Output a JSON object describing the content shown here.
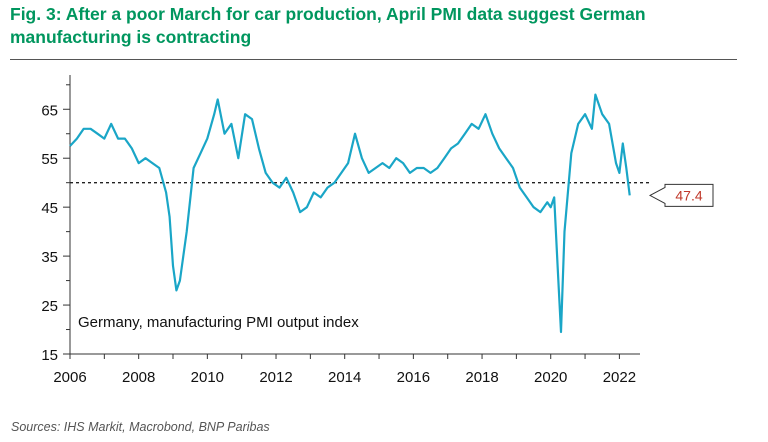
{
  "title": "Fig. 3: After a poor March for car production, April PMI data suggest German manufacturing is contracting",
  "source": "Sources: IHS Markit, Macrobond, BNP Paribas",
  "colors": {
    "title": "#00965e",
    "series": "#1aa6c7",
    "callout": "#c0392b",
    "axis": "#333333"
  },
  "chart_data": {
    "type": "line",
    "title": "Fig. 3: After a poor March for car production, April PMI data suggest German manufacturing is contracting",
    "xlabel": "",
    "ylabel": "",
    "xlim": [
      2006,
      2022.6
    ],
    "ylim": [
      15,
      72
    ],
    "x_ticks": [
      2006,
      2008,
      2010,
      2012,
      2014,
      2016,
      2018,
      2020,
      2022
    ],
    "y_ticks": [
      15,
      25,
      35,
      45,
      55,
      65
    ],
    "reference_line": {
      "value": 50,
      "style": "dashed"
    },
    "annotation_text": "Germany, manufacturing PMI output index",
    "callout": {
      "label": "47.4",
      "value": 47.4
    },
    "series": [
      {
        "name": "Germany, manufacturing PMI output index",
        "x": [
          2006.0,
          2006.2,
          2006.4,
          2006.6,
          2006.8,
          2007.0,
          2007.2,
          2007.4,
          2007.6,
          2007.8,
          2008.0,
          2008.2,
          2008.4,
          2008.6,
          2008.8,
          2008.9,
          2009.0,
          2009.1,
          2009.2,
          2009.4,
          2009.6,
          2009.8,
          2010.0,
          2010.2,
          2010.3,
          2010.5,
          2010.7,
          2010.9,
          2011.1,
          2011.3,
          2011.5,
          2011.7,
          2011.9,
          2012.1,
          2012.3,
          2012.5,
          2012.7,
          2012.9,
          2013.1,
          2013.3,
          2013.5,
          2013.7,
          2013.9,
          2014.1,
          2014.3,
          2014.5,
          2014.7,
          2014.9,
          2015.1,
          2015.3,
          2015.5,
          2015.7,
          2015.9,
          2016.1,
          2016.3,
          2016.5,
          2016.7,
          2016.9,
          2017.1,
          2017.3,
          2017.5,
          2017.7,
          2017.9,
          2018.1,
          2018.3,
          2018.5,
          2018.7,
          2018.9,
          2019.1,
          2019.3,
          2019.5,
          2019.7,
          2019.9,
          2020.0,
          2020.1,
          2020.2,
          2020.3,
          2020.4,
          2020.6,
          2020.8,
          2021.0,
          2021.2,
          2021.3,
          2021.5,
          2021.7,
          2021.9,
          2022.0,
          2022.1,
          2022.2,
          2022.3
        ],
        "values": [
          57.5,
          59,
          61,
          61,
          60,
          59,
          62,
          59,
          59,
          57,
          54,
          55,
          54,
          53,
          48,
          43,
          33,
          28,
          30,
          40,
          53,
          56,
          59,
          64,
          67,
          60,
          62,
          55,
          64,
          63,
          57,
          52,
          50,
          49,
          51,
          48,
          44,
          45,
          48,
          47,
          49,
          50,
          52,
          54,
          60,
          55,
          52,
          53,
          54,
          53,
          55,
          54,
          52,
          53,
          53,
          52,
          53,
          55,
          57,
          58,
          60,
          62,
          61,
          64,
          60,
          57,
          55,
          53,
          49,
          47,
          45,
          44,
          46,
          45,
          47,
          33,
          19.5,
          40,
          56,
          62,
          64,
          61,
          68,
          64,
          62,
          54,
          52,
          58,
          53,
          47.4
        ]
      }
    ]
  }
}
